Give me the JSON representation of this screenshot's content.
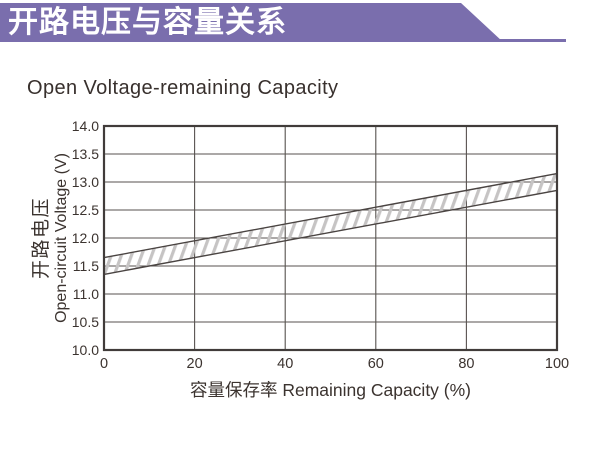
{
  "banner": {
    "title": "开路电压与容量关系",
    "bg_color": "#7a6ead",
    "text_color": "#ffffff"
  },
  "page": {
    "subtitle": "Open Voltage-remaining Capacity"
  },
  "chart_data": {
    "type": "area",
    "title": "Open Voltage-remaining Capacity",
    "xlabel": "容量保存率 Remaining Capacity (%)",
    "ylabel": [
      "开路电压",
      "Open-circuit Voltage (V)"
    ],
    "xlim": [
      0,
      100
    ],
    "ylim": [
      10.0,
      14.0
    ],
    "x_ticks": [
      0,
      20,
      40,
      60,
      80,
      100
    ],
    "y_ticks": [
      14.0,
      13.5,
      13.0,
      12.5,
      12.0,
      11.5,
      11.0,
      10.5,
      10.0
    ],
    "y_tick_decimals": 1,
    "grid": true,
    "legend": "none",
    "series": [
      {
        "name": "open-voltage-upper-bound",
        "x": [
          0,
          100
        ],
        "y": [
          11.65,
          13.15
        ]
      },
      {
        "name": "open-voltage-lower-bound",
        "x": [
          0,
          100
        ],
        "y": [
          11.35,
          12.85
        ]
      }
    ],
    "band": {
      "style": "diagonal-hatch",
      "hatch_color": "#c6c4c4",
      "edge_color": "#4a4442"
    },
    "colors": {
      "grid_line": "#57524f",
      "border": "#413c3a",
      "text": "#3b332f"
    }
  }
}
